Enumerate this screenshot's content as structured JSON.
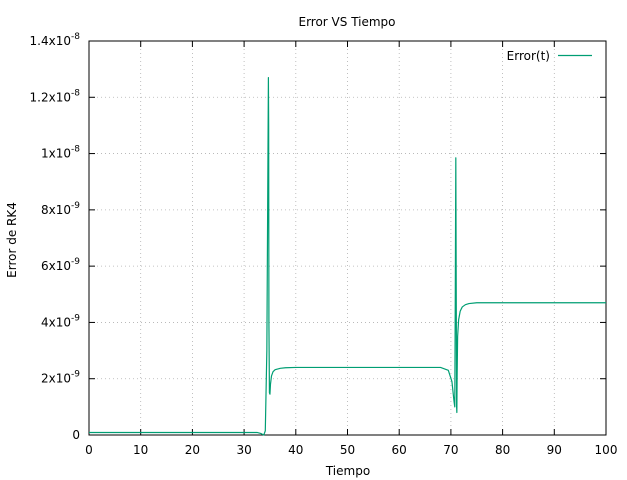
{
  "chart_data": {
    "type": "line",
    "title": "Error VS Tiempo",
    "xlabel": "Tiempo",
    "ylabel": "Error de RK4",
    "xlim": [
      0,
      100
    ],
    "ylim": [
      0,
      1.4e-08
    ],
    "grid": true,
    "legend_position": "top-right",
    "x_ticks": [
      {
        "value": 0,
        "label": "0"
      },
      {
        "value": 10,
        "label": "10"
      },
      {
        "value": 20,
        "label": "20"
      },
      {
        "value": 30,
        "label": "30"
      },
      {
        "value": 40,
        "label": "40"
      },
      {
        "value": 50,
        "label": "50"
      },
      {
        "value": 60,
        "label": "60"
      },
      {
        "value": 70,
        "label": "70"
      },
      {
        "value": 80,
        "label": "80"
      },
      {
        "value": 90,
        "label": "90"
      },
      {
        "value": 100,
        "label": "100"
      }
    ],
    "y_ticks": [
      {
        "value": 0,
        "base": "0",
        "exp": ""
      },
      {
        "value": 2e-09,
        "base": "2x10",
        "exp": "-9"
      },
      {
        "value": 4e-09,
        "base": "4x10",
        "exp": "-9"
      },
      {
        "value": 6e-09,
        "base": "6x10",
        "exp": "-9"
      },
      {
        "value": 8e-09,
        "base": "8x10",
        "exp": "-9"
      },
      {
        "value": 1e-08,
        "base": "1x10",
        "exp": "-8"
      },
      {
        "value": 1.2e-08,
        "base": "1.2x10",
        "exp": "-8"
      },
      {
        "value": 1.4e-08,
        "base": "1.4x10",
        "exp": "-8"
      }
    ],
    "series": [
      {
        "name": "Error(t)",
        "color": "#009e73",
        "x": [
          0,
          10,
          20,
          30,
          32.5,
          33.3,
          33.8,
          34.1,
          34.4,
          34.7,
          34.75,
          34.8,
          34.9,
          35.0,
          35.1,
          35.3,
          35.6,
          36.0,
          37.0,
          38.0,
          40.0,
          50.0,
          60.0,
          68.0,
          69.5,
          70.2,
          70.6,
          70.75,
          70.85,
          70.95,
          71.05,
          71.1,
          71.15,
          71.2,
          71.3,
          71.5,
          71.8,
          72.2,
          72.8,
          73.5,
          75.0,
          80.0,
          90.0,
          100.0
        ],
        "y": [
          9e-11,
          9e-11,
          9e-11,
          9e-11,
          9e-11,
          5e-11,
          0,
          1.5e-10,
          3e-09,
          1.27e-08,
          1.1e-08,
          4e-09,
          1.5e-09,
          1.45e-09,
          1.8e-09,
          2.1e-09,
          2.25e-09,
          2.32e-09,
          2.37e-09,
          2.39e-09,
          2.4e-09,
          2.4e-09,
          2.4e-09,
          2.4e-09,
          2.3e-09,
          1.9e-09,
          1.2e-09,
          1e-09,
          5e-09,
          9.85e-09,
          4e-09,
          1e-09,
          8e-10,
          2e-09,
          3.5e-09,
          4.1e-09,
          4.4e-09,
          4.55e-09,
          4.63e-09,
          4.67e-09,
          4.7e-09,
          4.7e-09,
          4.7e-09,
          4.7e-09
        ]
      }
    ]
  }
}
